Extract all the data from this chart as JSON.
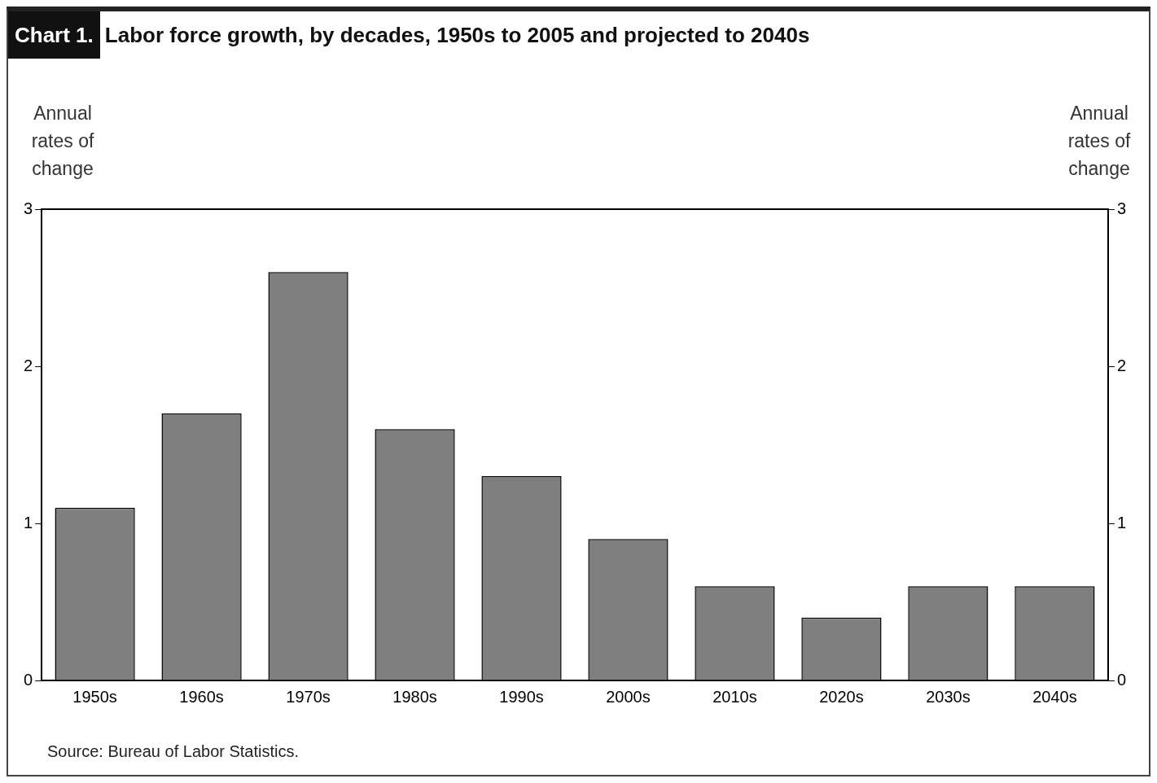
{
  "chart_data": {
    "type": "bar",
    "title": "Labor force growth, by decades, 1950s to 2005 and projected to 2040s",
    "ylabel": "Annual rates of change",
    "y2label": "Annual rates of change",
    "categories": [
      "1950s",
      "1960s",
      "1970s",
      "1980s",
      "1990s",
      "2000s",
      "2010s",
      "2020s",
      "2030s",
      "2040s"
    ],
    "values": [
      1.1,
      1.7,
      2.6,
      1.6,
      1.3,
      0.9,
      0.6,
      0.4,
      0.6,
      0.6
    ],
    "color": "#7f7f7f",
    "ylim": [
      0,
      3
    ],
    "yticks": [
      0,
      1,
      2,
      3
    ],
    "y2lim": [
      0,
      3
    ],
    "y2ticks": [
      0,
      1,
      2,
      3
    ],
    "grid": false,
    "legend": false,
    "annotations": [
      "Chart 1.",
      "Source: Bureau of Labor Statistics."
    ]
  }
}
